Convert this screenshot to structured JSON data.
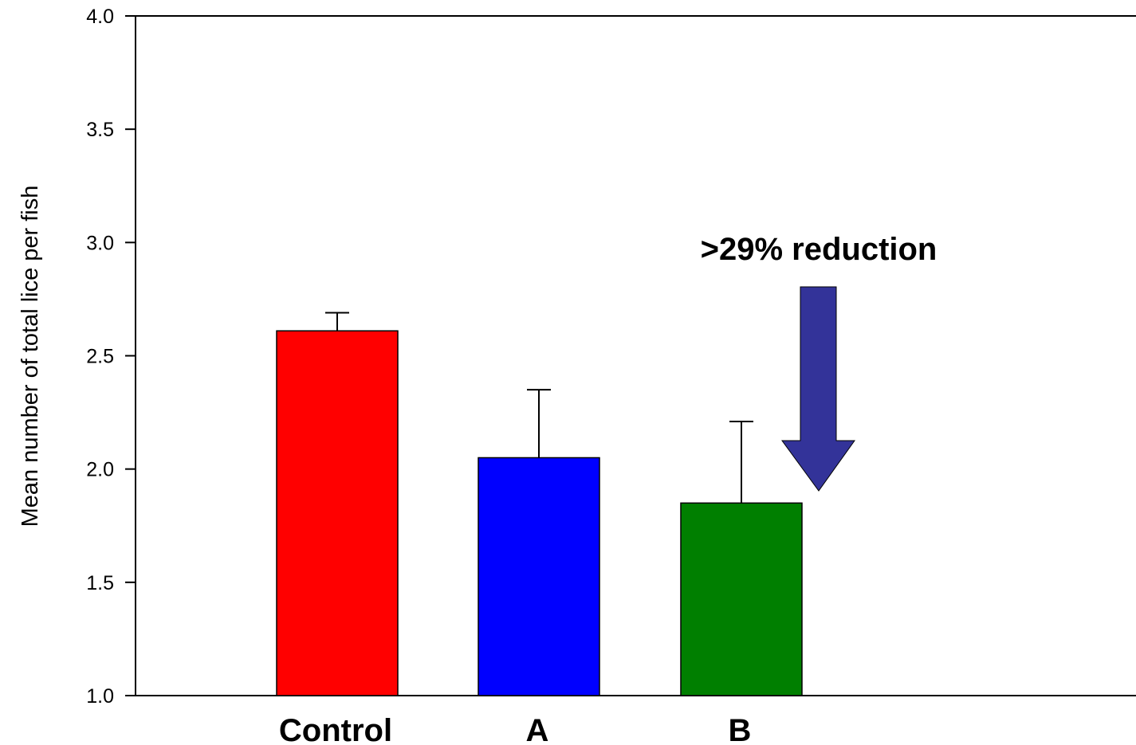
{
  "chart_data": {
    "type": "bar",
    "categories": [
      "Control",
      "A",
      "B"
    ],
    "values": [
      2.61,
      2.05,
      1.85
    ],
    "error_upper": [
      2.69,
      2.35,
      2.21
    ],
    "colors": [
      "#ff0000",
      "#0000ff",
      "#007f00"
    ],
    "title": "",
    "xlabel": "",
    "ylabel": "Mean number of total lice per fish",
    "ylim": [
      1.0,
      4.0
    ],
    "yticks": [
      "1.0",
      "1.5",
      "2.0",
      "2.5",
      "3.0",
      "3.5",
      "4.0"
    ],
    "grid": false,
    "annotation": {
      "text": ">29% reduction",
      "arrow_color": "#333399",
      "points_to": "B"
    }
  }
}
